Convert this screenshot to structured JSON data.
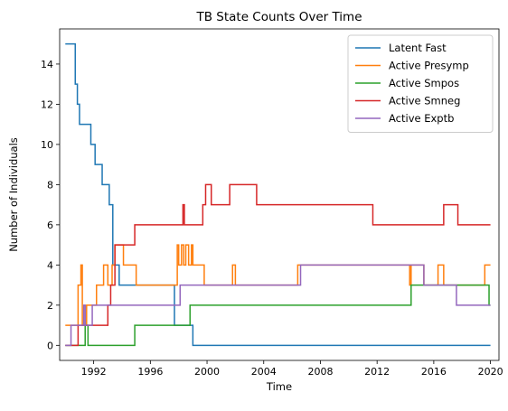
{
  "chart_data": {
    "type": "line",
    "step": true,
    "title": "TB State Counts Over Time",
    "xlabel": "Time",
    "ylabel": "Number of Individuals",
    "xlim": [
      1989.6,
      2020.6
    ],
    "ylim": [
      -0.75,
      15.75
    ],
    "xticks": [
      1992,
      1996,
      2000,
      2004,
      2008,
      2012,
      2016,
      2020
    ],
    "yticks": [
      0,
      2,
      4,
      6,
      8,
      10,
      12,
      14
    ],
    "grid": false,
    "legend_position": "top-right",
    "series": [
      {
        "name": "Latent Fast",
        "color": "#1f77b4",
        "points": [
          [
            1990,
            15
          ],
          [
            1990.7,
            13
          ],
          [
            1990.85,
            12
          ],
          [
            1991,
            11
          ],
          [
            1991.8,
            10
          ],
          [
            1992.1,
            9
          ],
          [
            1992.6,
            8
          ],
          [
            1993.1,
            7
          ],
          [
            1993.35,
            4
          ],
          [
            1993.8,
            3
          ],
          [
            1997.7,
            1
          ],
          [
            1999,
            0
          ],
          [
            2020,
            0
          ]
        ]
      },
      {
        "name": "Active Presymp",
        "color": "#ff7f0e",
        "points": [
          [
            1990,
            1
          ],
          [
            1990.9,
            3
          ],
          [
            1991.1,
            4
          ],
          [
            1991.2,
            1
          ],
          [
            1991.5,
            2
          ],
          [
            1992.2,
            3
          ],
          [
            1992.7,
            4
          ],
          [
            1993.0,
            3
          ],
          [
            1993.3,
            4
          ],
          [
            1993.5,
            5
          ],
          [
            1994.1,
            4
          ],
          [
            1994.5,
            4
          ],
          [
            1994.8,
            4
          ],
          [
            1995.0,
            3
          ],
          [
            1997.5,
            3
          ],
          [
            1997.9,
            5
          ],
          [
            1998.0,
            4
          ],
          [
            1998.2,
            5
          ],
          [
            1998.35,
            4
          ],
          [
            1998.5,
            5
          ],
          [
            1998.7,
            4
          ],
          [
            1998.9,
            5
          ],
          [
            1999.0,
            4
          ],
          [
            1999.8,
            3
          ],
          [
            2001.8,
            4
          ],
          [
            2002.0,
            3
          ],
          [
            2006.4,
            4
          ],
          [
            2014.3,
            3
          ],
          [
            2014.4,
            4
          ],
          [
            2015.3,
            3
          ],
          [
            2016.3,
            4
          ],
          [
            2016.7,
            3
          ],
          [
            2019.6,
            4
          ],
          [
            2020,
            4
          ]
        ]
      },
      {
        "name": "Active Smpos",
        "color": "#2ca02c",
        "points": [
          [
            1990,
            0
          ],
          [
            1991.4,
            1
          ],
          [
            1991.6,
            0
          ],
          [
            1994.9,
            1
          ],
          [
            1998.8,
            2
          ],
          [
            2014.4,
            3
          ],
          [
            2019.9,
            2
          ],
          [
            2020,
            2
          ]
        ]
      },
      {
        "name": "Active Smneg",
        "color": "#d62728",
        "points": [
          [
            1990,
            0
          ],
          [
            1990.9,
            1
          ],
          [
            1993.0,
            2
          ],
          [
            1993.2,
            3
          ],
          [
            1993.5,
            5
          ],
          [
            1994.9,
            6
          ],
          [
            1998.3,
            7
          ],
          [
            1998.4,
            6
          ],
          [
            1999.7,
            7
          ],
          [
            1999.9,
            8
          ],
          [
            2000.3,
            7
          ],
          [
            2001.6,
            8
          ],
          [
            2003.5,
            7
          ],
          [
            2011.7,
            6
          ],
          [
            2016.7,
            7
          ],
          [
            2017.7,
            6
          ],
          [
            2020,
            6
          ]
        ]
      },
      {
        "name": "Active Exptb",
        "color": "#9467bd",
        "points": [
          [
            1990,
            0
          ],
          [
            1990.4,
            1
          ],
          [
            1991.3,
            2
          ],
          [
            1991.4,
            1
          ],
          [
            1991.9,
            2
          ],
          [
            1998.1,
            3
          ],
          [
            2006.6,
            4
          ],
          [
            2015.3,
            3
          ],
          [
            2017.6,
            2
          ],
          [
            2020,
            2
          ]
        ]
      }
    ]
  }
}
